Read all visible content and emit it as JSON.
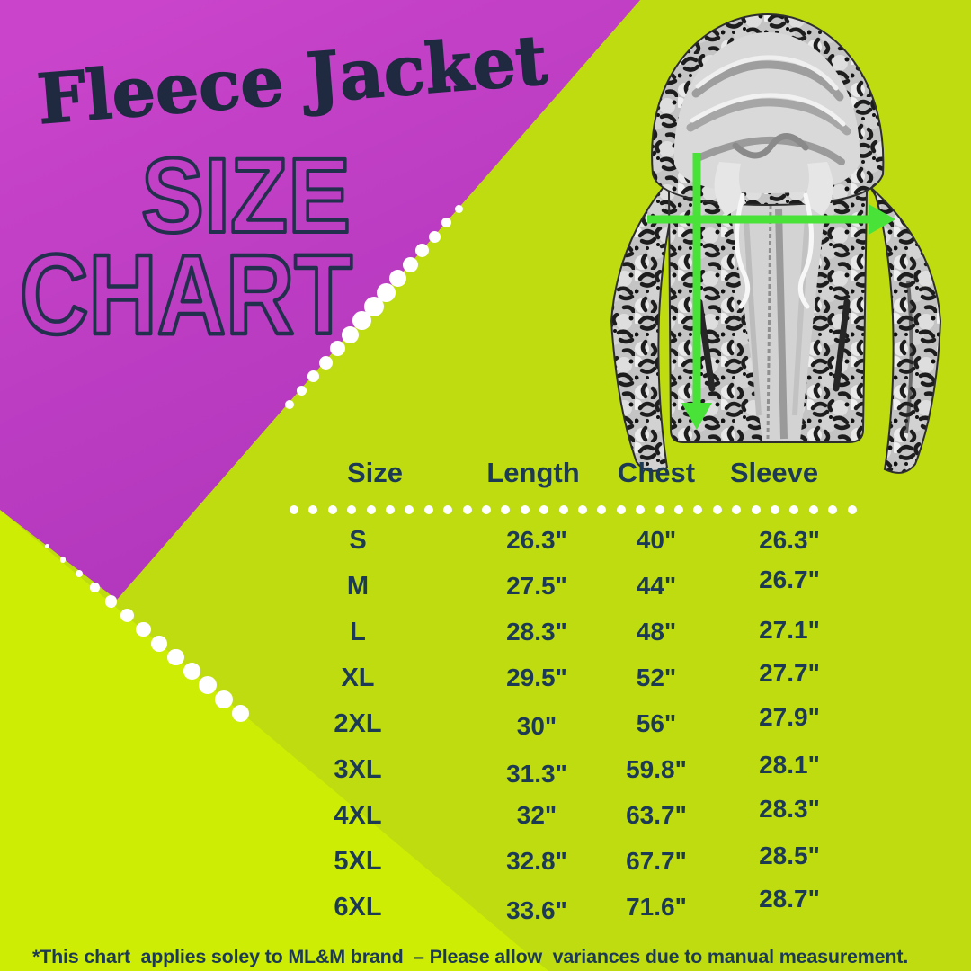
{
  "title": {
    "script": "Fleece Jacket",
    "outline_line1": "SIZE",
    "outline_line2": "CHART"
  },
  "size_table": {
    "headers": [
      "Size",
      "Length",
      "Chest",
      "Sleeve"
    ],
    "rows": [
      {
        "size": "S",
        "length": "26.3\"",
        "chest": "40\"",
        "sleeve": "26.3\""
      },
      {
        "size": "M",
        "length": "27.5\"",
        "chest": "44\"",
        "sleeve": "26.7\""
      },
      {
        "size": "L",
        "length": "28.3\"",
        "chest": "48\"",
        "sleeve": "27.1\""
      },
      {
        "size": "XL",
        "length": "29.5\"",
        "chest": "52\"",
        "sleeve": "27.7\""
      },
      {
        "size": "2XL",
        "length": "30\"",
        "chest": "56\"",
        "sleeve": "27.9\""
      },
      {
        "size": "3XL",
        "length": "31.3\"",
        "chest": "59.8\"",
        "sleeve": "28.1\""
      },
      {
        "size": "4XL",
        "length": "32\"",
        "chest": "63.7\"",
        "sleeve": "28.3\""
      },
      {
        "size": "5XL",
        "length": "32.8\"",
        "chest": "67.7\"",
        "sleeve": "28.5\""
      },
      {
        "size": "6XL",
        "length": "33.6\"",
        "chest": "71.6\"",
        "sleeve": "28.7\""
      }
    ]
  },
  "footer": {
    "disclaimer": "*This chart  applies soley to ML&M brand  – Please allow  variances due to manual measurement."
  },
  "icons": {
    "chest_arrow": "chest-width-arrow",
    "length_arrow": "length-arrow"
  },
  "colors": {
    "magenta": "#b83cbe",
    "lime": "#cdee04",
    "lime_shaded": "#bedc10",
    "navy_text": "#1d3a55",
    "title_navy": "#1f2940",
    "outline_navy": "#22304d",
    "arrow_green": "#49e239",
    "dots": "#ffffff"
  }
}
